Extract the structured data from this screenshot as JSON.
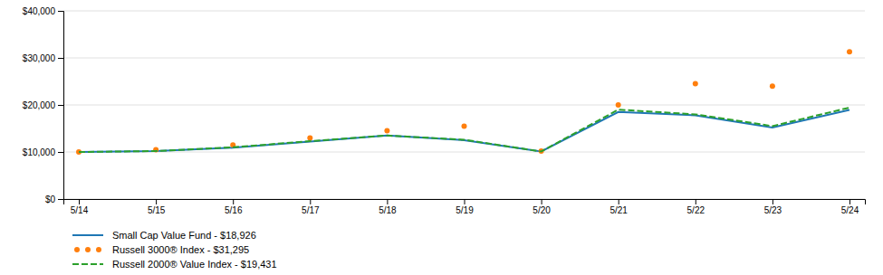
{
  "chart_data": {
    "type": "line",
    "categories": [
      "5/14",
      "5/15",
      "5/16",
      "5/17",
      "5/18",
      "5/19",
      "5/20",
      "5/21",
      "5/22",
      "5/23",
      "5/24"
    ],
    "series": [
      {
        "name": "Small Cap Value Fund - $18,926",
        "line_style": "solid",
        "values": [
          10000,
          10200,
          10900,
          12200,
          13500,
          12500,
          10100,
          18500,
          17800,
          15200,
          18926
        ]
      },
      {
        "name": "Russell 3000® Index - $31,295",
        "line_style": "none",
        "marker": "point",
        "values": [
          10000,
          10500,
          11500,
          13000,
          14500,
          15500,
          10200,
          20000,
          24500,
          24000,
          31295
        ]
      },
      {
        "name": "Russell 2000® Value Index - $19,431",
        "line_style": "dashed",
        "values": [
          10000,
          10200,
          11000,
          12300,
          13500,
          12600,
          10100,
          19000,
          18000,
          15500,
          19431
        ]
      }
    ],
    "ylim": [
      0,
      40000
    ],
    "yticks": [
      {
        "value": 0,
        "label": "$0"
      },
      {
        "value": 10000,
        "label": "$10,000"
      },
      {
        "value": 20000,
        "label": "$20,000"
      },
      {
        "value": 30000,
        "label": "$30,000"
      },
      {
        "value": 40000,
        "label": "$40,000"
      }
    ],
    "grid": true,
    "legend": "bottom"
  }
}
